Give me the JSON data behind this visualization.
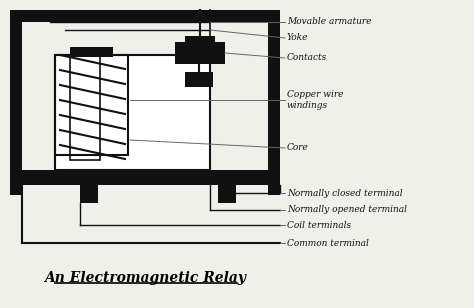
{
  "background_color": "#f0f0eb",
  "title": "An Electromagnetic Relay",
  "title_fontsize": 10,
  "label_fontsize": 6.5,
  "label_color": "#111111",
  "line_color": "#111111",
  "labels": {
    "movable_armature": "Movable armature",
    "yoke": "Yoke",
    "contacts": "Contacts",
    "copper_wire": "Copper wire\nwindings",
    "core": "Core",
    "normally_closed": "Normally closed terminal",
    "normally_opened": "Normally opened terminal",
    "coil_terminals": "Coil terminals",
    "common_terminal": "Common terminal"
  },
  "xlim": [
    0,
    474
  ],
  "ylim": [
    0,
    308
  ]
}
